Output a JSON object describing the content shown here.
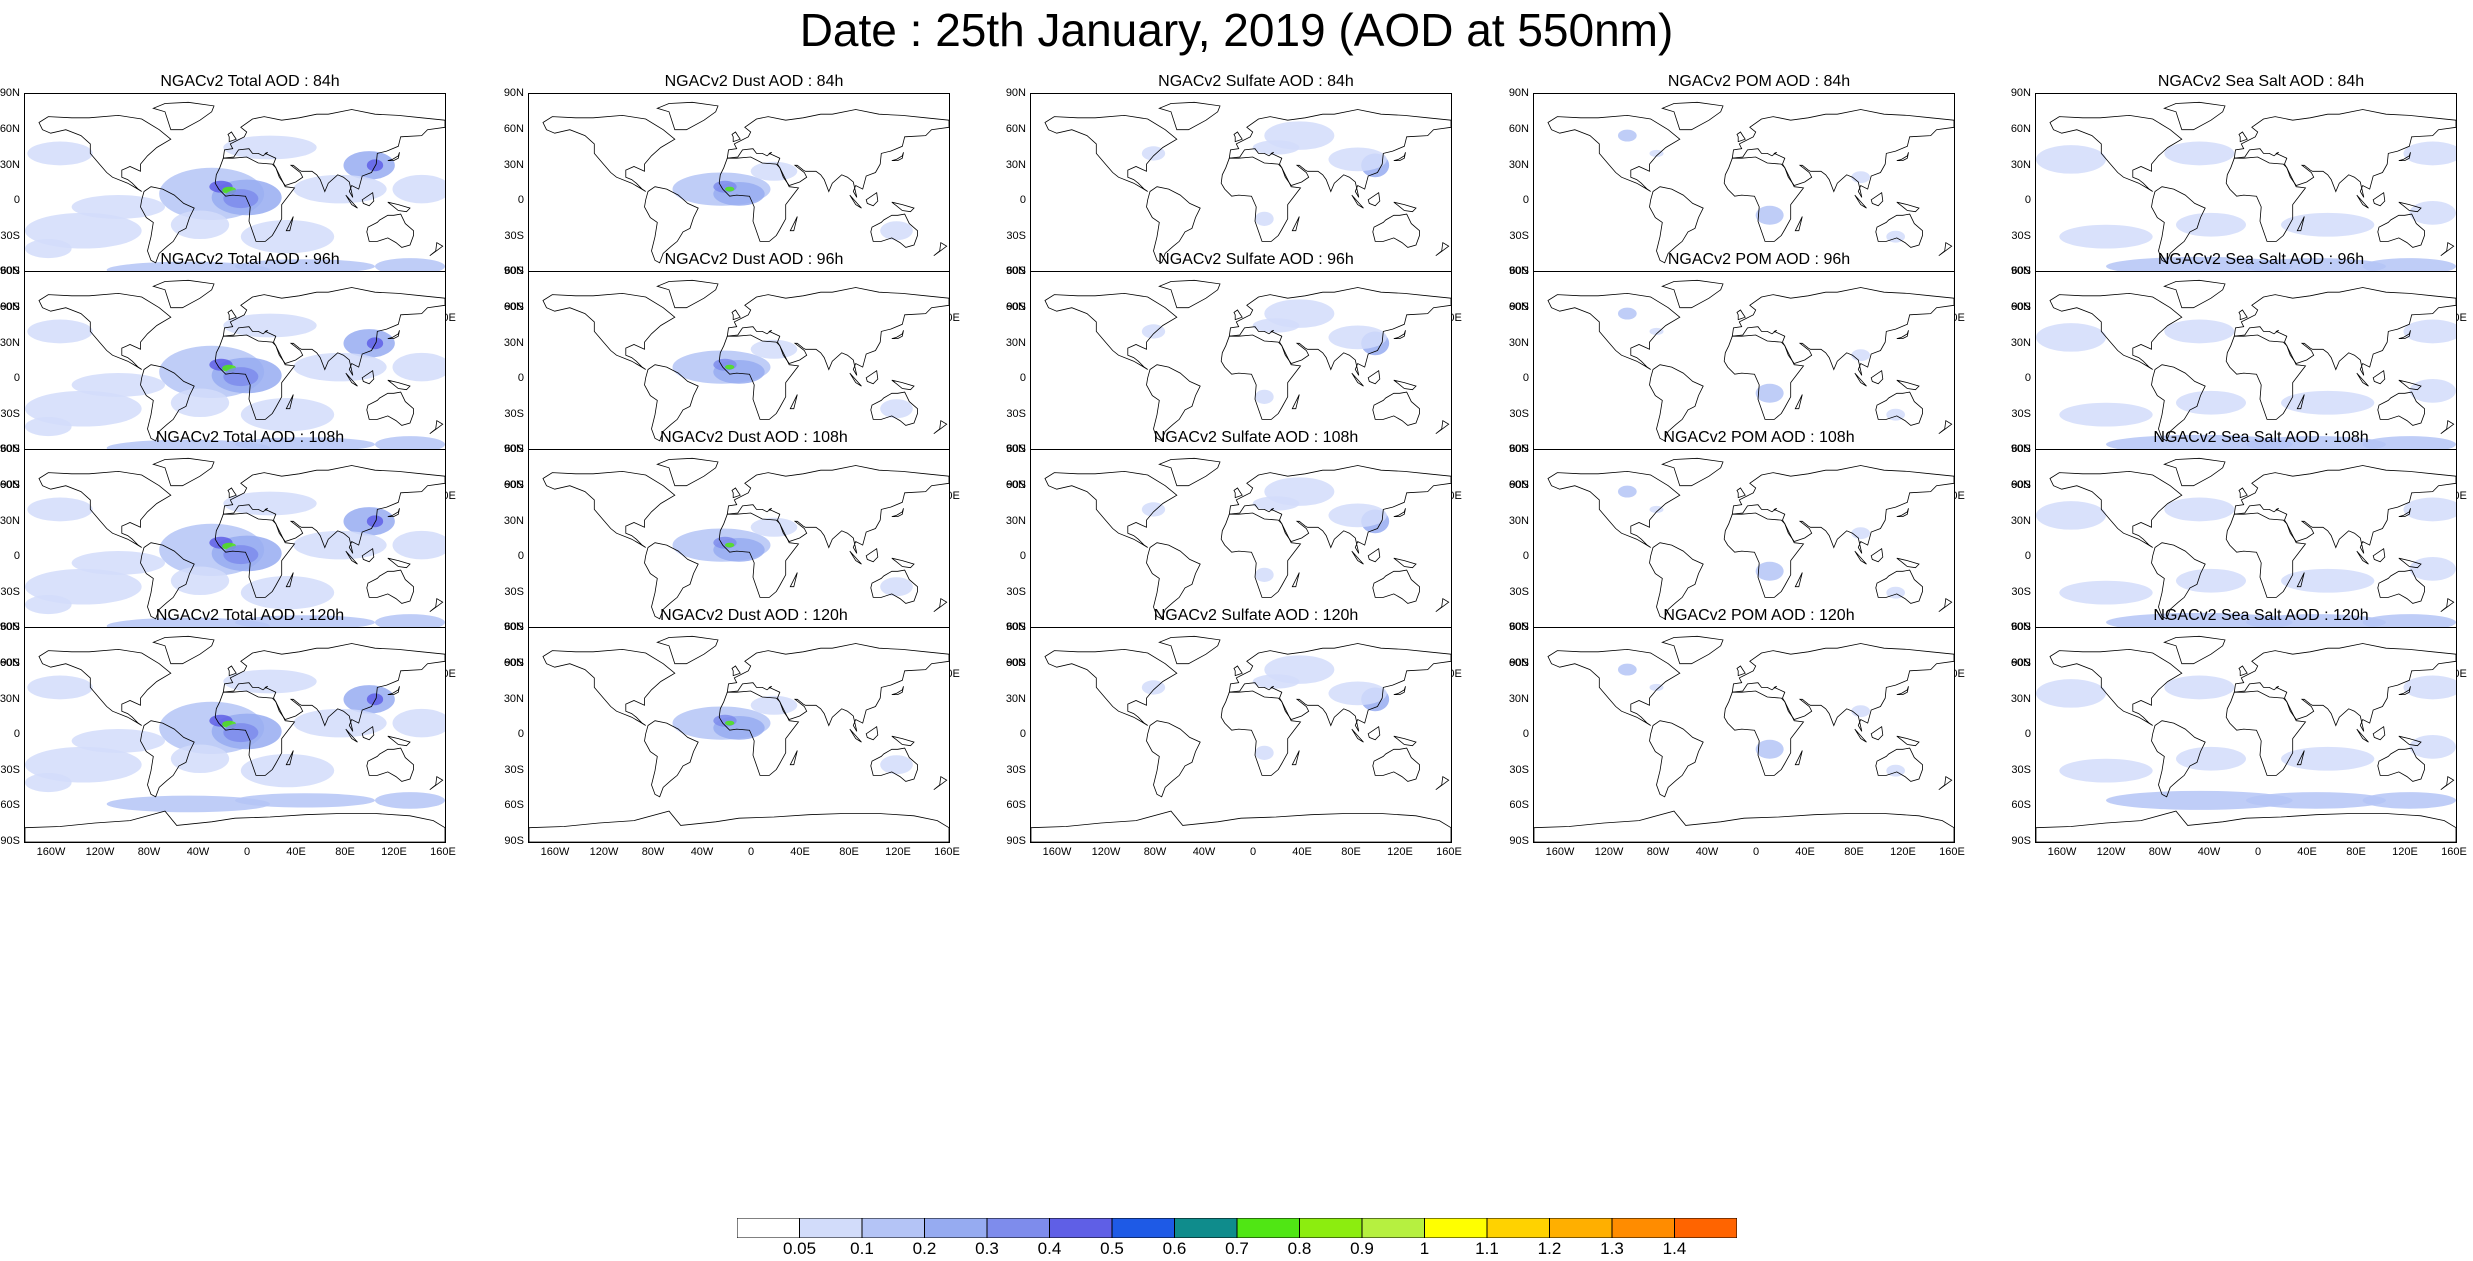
{
  "title": "Date : 25th January, 2019 (AOD at 550nm)",
  "lat_ticks": [
    "90N",
    "60N",
    "30N",
    "0",
    "30S",
    "60S",
    "90S"
  ],
  "lon_ticks": [
    "160W",
    "120W",
    "80W",
    "40W",
    "0",
    "40E",
    "80E",
    "120E",
    "160E"
  ],
  "panels": [
    {
      "title": "NGACv2 Total AOD : 84h",
      "species": "total"
    },
    {
      "title": "NGACv2 Dust AOD : 84h",
      "species": "dust"
    },
    {
      "title": "NGACv2 Sulfate AOD : 84h",
      "species": "sulfate"
    },
    {
      "title": "NGACv2 POM AOD : 84h",
      "species": "pom"
    },
    {
      "title": "NGACv2 Sea Salt AOD : 84h",
      "species": "seasalt"
    },
    {
      "title": "NGACv2 Total AOD : 96h",
      "species": "total"
    },
    {
      "title": "NGACv2 Dust AOD : 96h",
      "species": "dust"
    },
    {
      "title": "NGACv2 Sulfate AOD : 96h",
      "species": "sulfate"
    },
    {
      "title": "NGACv2 POM AOD : 96h",
      "species": "pom"
    },
    {
      "title": "NGACv2 Sea Salt AOD : 96h",
      "species": "seasalt"
    },
    {
      "title": "NGACv2 Total AOD : 108h",
      "species": "total"
    },
    {
      "title": "NGACv2 Dust AOD : 108h",
      "species": "dust"
    },
    {
      "title": "NGACv2 Sulfate AOD : 108h",
      "species": "sulfate"
    },
    {
      "title": "NGACv2 POM AOD : 108h",
      "species": "pom"
    },
    {
      "title": "NGACv2 Sea Salt AOD : 108h",
      "species": "seasalt"
    },
    {
      "title": "NGACv2 Total AOD : 120h",
      "species": "total"
    },
    {
      "title": "NGACv2 Dust AOD : 120h",
      "species": "dust"
    },
    {
      "title": "NGACv2 Sulfate AOD : 120h",
      "species": "sulfate"
    },
    {
      "title": "NGACv2 POM AOD : 120h",
      "species": "pom"
    },
    {
      "title": "NGACv2 Sea Salt  AOD : 120h",
      "species": "seasalt"
    }
  ],
  "colorbar": {
    "labels": [
      "0.05",
      "0.1",
      "0.2",
      "0.3",
      "0.4",
      "0.5",
      "0.6",
      "0.7",
      "0.8",
      "0.9",
      "1",
      "1.1",
      "1.2",
      "1.3",
      "1.4"
    ],
    "colors": [
      "#ffffff",
      "#d2dcfa",
      "#b4c4f6",
      "#96abf1",
      "#7e8cec",
      "#5f5fe6",
      "#1e5ae6",
      "#0f8c8c",
      "#50e614",
      "#8ced0f",
      "#b6f040",
      "#ffff00",
      "#ffd200",
      "#ffaf00",
      "#ff8c00",
      "#ff6400",
      "#ff2800"
    ]
  }
}
